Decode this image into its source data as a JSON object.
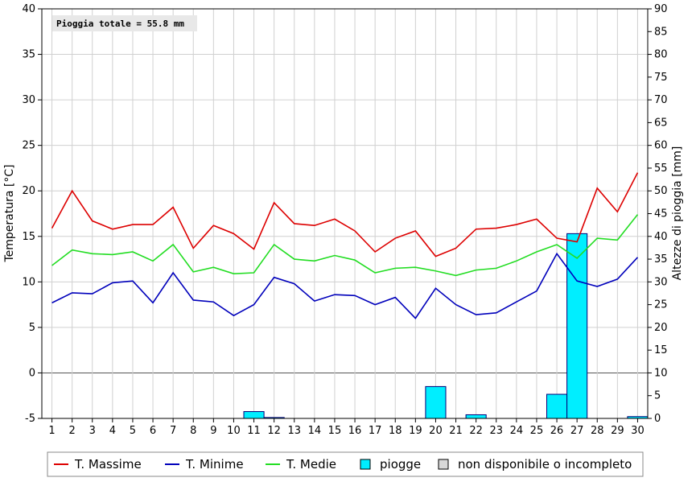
{
  "annotation": "Pioggia totale = 55.8 mm",
  "chart_data": {
    "type": "line",
    "x": [
      1,
      2,
      3,
      4,
      5,
      6,
      7,
      8,
      9,
      10,
      11,
      12,
      13,
      14,
      15,
      16,
      17,
      18,
      19,
      20,
      21,
      22,
      23,
      24,
      25,
      26,
      27,
      28,
      29,
      30
    ],
    "ylabel_left": "Temperatura [°C]",
    "ylabel_right": "Altezze di pioggia [mm]",
    "ylim_left": [
      -5,
      40
    ],
    "ylim_right": [
      0,
      90
    ],
    "yticks_left": [
      -5,
      0,
      5,
      10,
      15,
      20,
      25,
      30,
      35,
      40
    ],
    "yticks_right": [
      0,
      5,
      10,
      15,
      20,
      25,
      30,
      35,
      40,
      45,
      50,
      55,
      60,
      65,
      70,
      75,
      80,
      85,
      90
    ],
    "grid": true,
    "legend_position": "bottom",
    "series": [
      {
        "name": "T. Massime",
        "color": "#dd0000",
        "values": [
          15.9,
          20.0,
          16.7,
          15.8,
          16.3,
          16.3,
          18.2,
          13.7,
          16.2,
          15.3,
          13.6,
          18.7,
          16.4,
          16.2,
          16.9,
          15.6,
          13.3,
          14.8,
          15.6,
          12.8,
          13.7,
          15.8,
          15.9,
          16.3,
          16.9,
          14.8,
          14.4,
          20.3,
          17.7,
          22.0
        ]
      },
      {
        "name": "T. Minime",
        "color": "#0000bb",
        "values": [
          7.7,
          8.8,
          8.7,
          9.9,
          10.1,
          7.7,
          11.0,
          8.0,
          7.8,
          6.3,
          7.5,
          10.5,
          9.8,
          7.9,
          8.6,
          8.5,
          7.5,
          8.3,
          6.0,
          9.3,
          7.5,
          6.4,
          6.6,
          7.8,
          9.0,
          13.1,
          10.1,
          9.5,
          10.3,
          12.7
        ]
      },
      {
        "name": "T. Medie",
        "color": "#22dd22",
        "values": [
          11.8,
          13.5,
          13.1,
          13.0,
          13.3,
          12.3,
          14.1,
          11.1,
          11.6,
          10.9,
          11.0,
          14.1,
          12.5,
          12.3,
          12.9,
          12.4,
          11.0,
          11.5,
          11.6,
          11.2,
          10.7,
          11.3,
          11.5,
          12.3,
          13.3,
          14.1,
          12.6,
          14.8,
          14.6,
          17.4
        ]
      }
    ],
    "rain": {
      "name": "piogge",
      "color": "#00eeff",
      "values": [
        0,
        0,
        0,
        0,
        0,
        0,
        0,
        0,
        0,
        0,
        1.5,
        0.2,
        0,
        0,
        0,
        0,
        0,
        0,
        0,
        7.0,
        0,
        0.8,
        0,
        0,
        0,
        5.3,
        40.6,
        0,
        0,
        0.4
      ]
    }
  },
  "legend": {
    "items": [
      {
        "label": "T. Massime",
        "kind": "line",
        "color": "#dd0000"
      },
      {
        "label": "T. Minime",
        "kind": "line",
        "color": "#0000bb"
      },
      {
        "label": "T. Medie",
        "kind": "line",
        "color": "#22dd22"
      },
      {
        "label": "piogge",
        "kind": "box",
        "color": "#00eeff"
      },
      {
        "label": "non disponibile o incompleto",
        "kind": "box",
        "color": "#d8d8d8"
      }
    ]
  }
}
